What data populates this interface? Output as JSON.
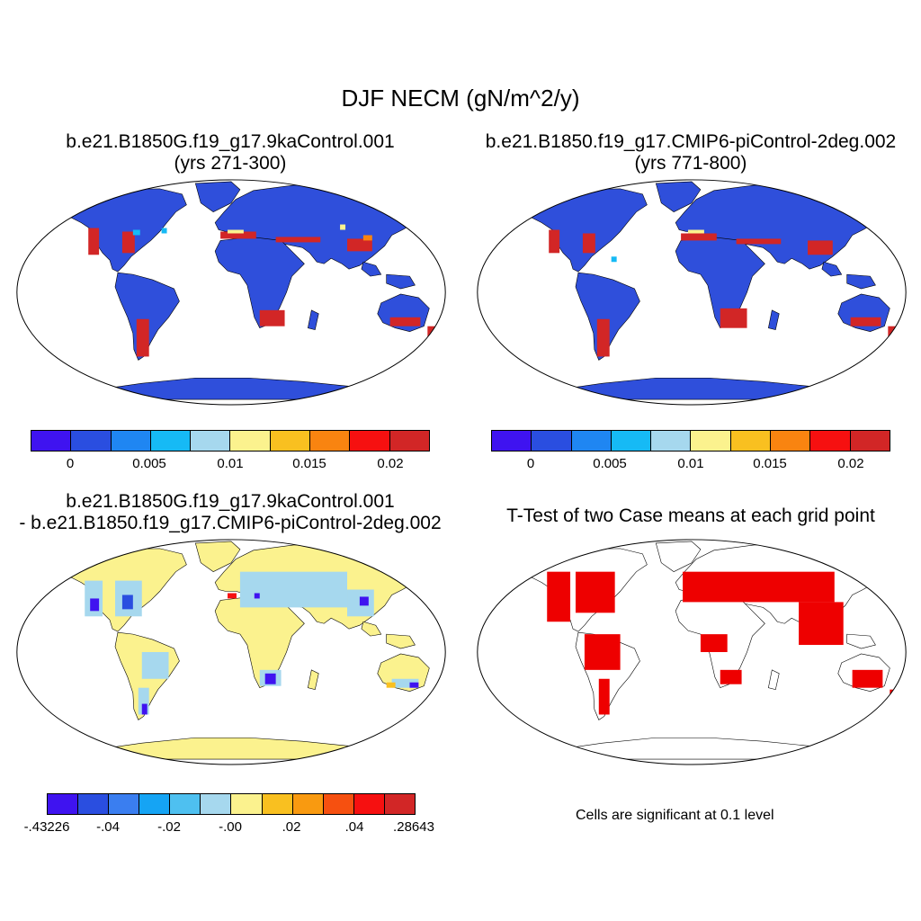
{
  "title": "DJF NECM (gN/m^2/y)",
  "panels": {
    "top_left": {
      "title_line1": "b.e21.B1850G.f19_g17.9kaControl.001",
      "title_line2": "(yrs 271-300)"
    },
    "top_right": {
      "title_line1": "b.e21.B1850.f19_g17.CMIP6-piControl-2deg.002",
      "title_line2": "(yrs 771-800)"
    },
    "bottom_left": {
      "title_line1": "b.e21.B1850G.f19_g17.9kaControl.001",
      "title_line2": "- b.e21.B1850.f19_g17.CMIP6-piControl-2deg.002"
    },
    "bottom_right": {
      "title": "T-Test of two Case means at each grid point",
      "note": "Cells are significant at 0.1 level"
    }
  },
  "colorbars": {
    "case": {
      "colors": [
        "#3f13f0",
        "#2a4ee0",
        "#1f86f2",
        "#16baf5",
        "#a6d8ee",
        "#fbf28e",
        "#f9c020",
        "#f98410",
        "#f61010",
        "#d22626"
      ],
      "tick_labels": [
        "0",
        "0.005",
        "0.01",
        "0.015",
        "0.02"
      ]
    },
    "diff": {
      "colors": [
        "#3f13f0",
        "#2a4ee0",
        "#3a7ef0",
        "#15a4f4",
        "#4ec0f0",
        "#a6d8ee",
        "#fbf28e",
        "#f9c020",
        "#f99a10",
        "#f65010",
        "#f61010",
        "#d22626"
      ],
      "tick_labels": [
        "-.43226",
        "-.04",
        "-.02",
        "-.00",
        ".02",
        ".04",
        ".28643"
      ]
    }
  },
  "map_colors": {
    "land_case": "#2f4fdb",
    "land_diff": "#fbf28e",
    "significant": "#ee0000",
    "background": "#ffffff"
  }
}
